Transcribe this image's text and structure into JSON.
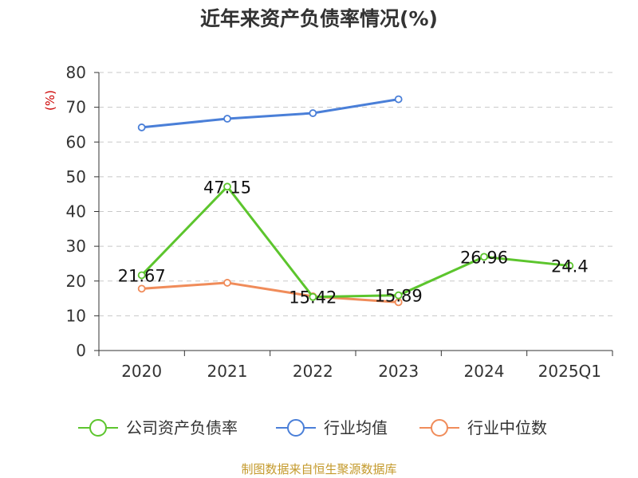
{
  "chart_data": {
    "type": "line",
    "title": "近年来资产负债率情况(%)",
    "unit_label": "(%)",
    "categories": [
      "2020",
      "2021",
      "2022",
      "2023",
      "2024",
      "2025Q1"
    ],
    "ylim": [
      0,
      80
    ],
    "yticks": [
      0,
      10,
      20,
      30,
      40,
      50,
      60,
      70,
      80
    ],
    "grid": true,
    "legend_position": "bottom",
    "series": [
      {
        "name": "公司资产负债率",
        "color": "#5cc52d",
        "show_labels": true,
        "labels": [
          "21.67",
          "47.15",
          "15.42",
          "15.89",
          "26.96",
          "24.4"
        ],
        "values": [
          21.67,
          47.15,
          15.42,
          15.89,
          26.96,
          24.4
        ]
      },
      {
        "name": "行业均值",
        "color": "#4a7fd8",
        "show_labels": false,
        "values": [
          64.2,
          66.7,
          68.3,
          72.3,
          null,
          null
        ]
      },
      {
        "name": "行业中位数",
        "color": "#f08c5a",
        "show_labels": false,
        "values": [
          17.8,
          19.5,
          15.6,
          13.9,
          null,
          null
        ]
      }
    ]
  },
  "footer": {
    "source": "制图数据来自恒生聚源数据库"
  }
}
